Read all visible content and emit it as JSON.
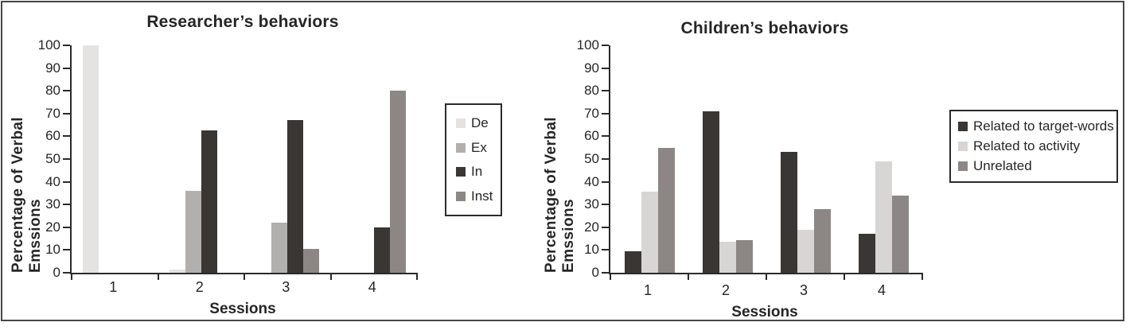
{
  "figure": {
    "background": "#ffffff",
    "frame_color": "#474747",
    "axis_color": "#2b2b2b"
  },
  "chart_data": [
    {
      "type": "bar",
      "title": "Researcher’s behaviors",
      "ylabel": "Percentage of Verbal Emssions",
      "xlabel": "Sessions",
      "categories": [
        "1",
        "2",
        "3",
        "4"
      ],
      "ylim": [
        0,
        100
      ],
      "yticks": [
        0,
        10,
        20,
        30,
        40,
        50,
        60,
        70,
        80,
        90,
        100
      ],
      "grid": false,
      "legend_position": "right",
      "series": [
        {
          "name": "De",
          "color": "#e4e3e1",
          "values": [
            100,
            1.5,
            0,
            0
          ]
        },
        {
          "name": "Ex",
          "color": "#b2b0ae",
          "values": [
            0,
            36,
            22,
            0
          ]
        },
        {
          "name": "In",
          "color": "#393634",
          "values": [
            0,
            62.5,
            67,
            20
          ]
        },
        {
          "name": "Inst",
          "color": "#8c8784",
          "values": [
            0,
            0,
            10.5,
            80
          ]
        }
      ]
    },
    {
      "type": "bar",
      "title": "Children’s behaviors",
      "ylabel": "Percentage of Verbal Emssions",
      "xlabel": "Sessions",
      "categories": [
        "1",
        "2",
        "3",
        "4"
      ],
      "ylim": [
        0,
        100
      ],
      "yticks": [
        0,
        10,
        20,
        30,
        40,
        50,
        60,
        70,
        80,
        90,
        100
      ],
      "grid": false,
      "legend_position": "right",
      "series": [
        {
          "name": "Related to target-words",
          "color": "#393634",
          "values": [
            9.5,
            71,
            53,
            17
          ]
        },
        {
          "name": "Related to activity",
          "color": "#d7d6d4",
          "values": [
            35.5,
            13.5,
            19,
            49
          ]
        },
        {
          "name": "Unrelated",
          "color": "#8c8784",
          "values": [
            55,
            14.5,
            28,
            34
          ]
        }
      ]
    }
  ]
}
